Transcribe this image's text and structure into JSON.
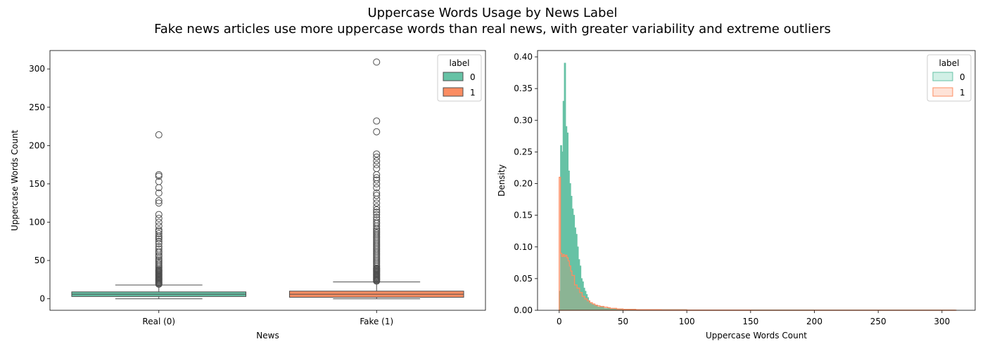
{
  "figure": {
    "title": "Uppercase Words Usage by News Label",
    "subtitle": "Fake news articles use more uppercase words than real news, with greater variability and extreme outliers"
  },
  "colors": {
    "label_0": "#66c2a5",
    "label_1": "#fc8d62",
    "box_edge": "#4d4d4d"
  },
  "chart_data": [
    {
      "type": "box",
      "xlabel": "News",
      "ylabel": "Uppercase Words Count",
      "ylim": [
        -15,
        324
      ],
      "yticks": [
        0,
        50,
        100,
        150,
        200,
        250,
        300
      ],
      "categories": [
        "Real (0)",
        "Fake (1)"
      ],
      "legend": {
        "title": "label",
        "entries": [
          "0",
          "1"
        ],
        "placement": "top-right"
      },
      "series": [
        {
          "name": "0",
          "category": "Real (0)",
          "min": 0,
          "q1": 3,
          "median": 6,
          "q3": 9,
          "whisker_high": 18,
          "outliers": [
            19,
            20,
            21,
            22,
            23,
            24,
            25,
            26,
            27,
            28,
            29,
            30,
            31,
            32,
            33,
            34,
            35,
            36,
            37,
            38,
            40,
            42,
            44,
            46,
            48,
            50,
            52,
            55,
            57,
            60,
            62,
            65,
            68,
            72,
            75,
            78,
            80,
            82,
            85,
            88,
            90,
            95,
            100,
            105,
            110,
            125,
            128,
            138,
            145,
            153,
            160,
            162,
            214
          ]
        },
        {
          "name": "1",
          "category": "Fake (1)",
          "min": 0,
          "q1": 2,
          "median": 6,
          "q3": 10,
          "whisker_high": 22,
          "outliers": [
            23,
            24,
            25,
            26,
            27,
            28,
            29,
            30,
            31,
            32,
            33,
            34,
            35,
            36,
            37,
            38,
            39,
            40,
            42,
            44,
            46,
            48,
            50,
            52,
            54,
            56,
            58,
            60,
            62,
            64,
            66,
            68,
            70,
            72,
            74,
            76,
            78,
            80,
            82,
            84,
            86,
            88,
            90,
            92,
            95,
            98,
            100,
            103,
            106,
            110,
            113,
            116,
            120,
            125,
            130,
            135,
            138,
            145,
            150,
            155,
            158,
            162,
            170,
            175,
            180,
            185,
            189,
            218,
            232,
            309
          ]
        }
      ]
    },
    {
      "type": "area",
      "xlabel": "Uppercase Words Count",
      "ylabel": "Density",
      "xlim": [
        -17,
        326
      ],
      "ylim": [
        0,
        0.41
      ],
      "xticks": [
        0,
        50,
        100,
        150,
        200,
        250,
        300
      ],
      "yticks": [
        "0.00",
        "0.05",
        "0.10",
        "0.15",
        "0.20",
        "0.25",
        "0.30",
        "0.35",
        "0.40"
      ],
      "legend": {
        "title": "label",
        "entries": [
          "0",
          "1"
        ],
        "placement": "top-right"
      },
      "series": [
        {
          "name": "0",
          "x": [
            0,
            1,
            2,
            3,
            4,
            5,
            6,
            7,
            8,
            9,
            10,
            11,
            12,
            13,
            14,
            15,
            16,
            17,
            18,
            19,
            20,
            21,
            22,
            23,
            24,
            25,
            27,
            30,
            35,
            40,
            50,
            100,
            200,
            310
          ],
          "density": [
            0.03,
            0.26,
            0.25,
            0.33,
            0.39,
            0.29,
            0.28,
            0.22,
            0.2,
            0.18,
            0.16,
            0.15,
            0.13,
            0.12,
            0.1,
            0.08,
            0.07,
            0.05,
            0.045,
            0.035,
            0.03,
            0.025,
            0.02,
            0.015,
            0.012,
            0.01,
            0.008,
            0.005,
            0.003,
            0.002,
            0.001,
            0.0005,
            0.0003,
            0.0002
          ]
        },
        {
          "name": "1",
          "x": [
            0,
            1,
            2,
            3,
            4,
            5,
            6,
            7,
            8,
            9,
            10,
            12,
            14,
            16,
            18,
            20,
            22,
            24,
            26,
            28,
            30,
            32,
            35,
            38,
            40,
            45,
            50,
            60,
            80,
            100,
            150,
            200,
            310
          ],
          "density": [
            0.21,
            0.09,
            0.085,
            0.088,
            0.085,
            0.087,
            0.083,
            0.078,
            0.07,
            0.062,
            0.055,
            0.04,
            0.035,
            0.028,
            0.022,
            0.018,
            0.015,
            0.012,
            0.01,
            0.008,
            0.007,
            0.006,
            0.005,
            0.004,
            0.003,
            0.002,
            0.0015,
            0.001,
            0.0006,
            0.0004,
            0.0003,
            0.0002,
            0.0001
          ]
        }
      ]
    }
  ]
}
